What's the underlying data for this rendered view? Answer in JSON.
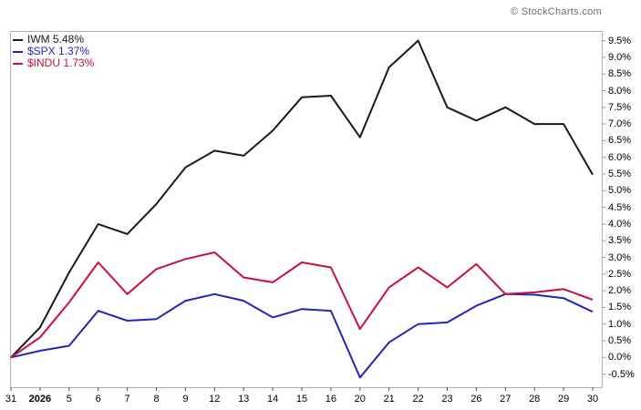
{
  "watermark": "© StockCharts.com",
  "chart_data": {
    "type": "line",
    "title": "",
    "xlabel": "",
    "ylabel": "",
    "grid": false,
    "legend_position": "top-left",
    "x_labels": [
      "31",
      "2026",
      "5",
      "6",
      "7",
      "8",
      "9",
      "12",
      "13",
      "14",
      "15",
      "16",
      "20",
      "21",
      "22",
      "23",
      "26",
      "27",
      "28",
      "29",
      "30"
    ],
    "x_label_bold": "2026",
    "y_tick_labels": [
      "9.5%",
      "9.0%",
      "8.5%",
      "8.0%",
      "7.5%",
      "7.0%",
      "6.5%",
      "6.0%",
      "5.5%",
      "5.0%",
      "4.5%",
      "4.0%",
      "3.5%",
      "3.0%",
      "2.5%",
      "2.0%",
      "1.5%",
      "1.0%",
      "0.5%",
      "0.0%",
      "-0.5%"
    ],
    "y_tick_values": [
      9.5,
      9.0,
      8.5,
      8.0,
      7.5,
      7.0,
      6.5,
      6.0,
      5.5,
      5.0,
      4.5,
      4.0,
      3.5,
      3.0,
      2.5,
      2.0,
      1.5,
      1.0,
      0.5,
      0.0,
      -0.5
    ],
    "ylim": [
      -0.9,
      9.8
    ],
    "series": [
      {
        "name": "IWM",
        "label": "IWM 5.48%",
        "last_value": "5.48%",
        "color": "#1a1a1a",
        "values": [
          0.0,
          0.9,
          2.55,
          4.0,
          3.7,
          4.6,
          5.7,
          6.2,
          6.05,
          6.8,
          7.8,
          7.85,
          6.6,
          8.7,
          9.5,
          7.5,
          7.1,
          7.5,
          7.0,
          7.0,
          5.48
        ]
      },
      {
        "name": "$SPX",
        "label": "$SPX 1.37%",
        "last_value": "1.37%",
        "color": "#2424bb",
        "values": [
          0.0,
          0.2,
          0.35,
          1.4,
          1.1,
          1.15,
          1.7,
          1.9,
          1.7,
          1.2,
          1.45,
          1.4,
          -0.6,
          0.45,
          1.0,
          1.05,
          1.55,
          1.9,
          1.88,
          1.78,
          1.37
        ]
      },
      {
        "name": "$INDU",
        "label": "$INDU 1.73%",
        "last_value": "1.73%",
        "color": "#cc0f3c",
        "values": [
          0.0,
          0.6,
          1.65,
          2.85,
          1.9,
          2.65,
          2.95,
          3.15,
          2.4,
          2.25,
          2.85,
          2.7,
          0.85,
          2.1,
          2.7,
          2.1,
          2.8,
          1.9,
          1.95,
          2.05,
          1.73
        ]
      }
    ]
  }
}
